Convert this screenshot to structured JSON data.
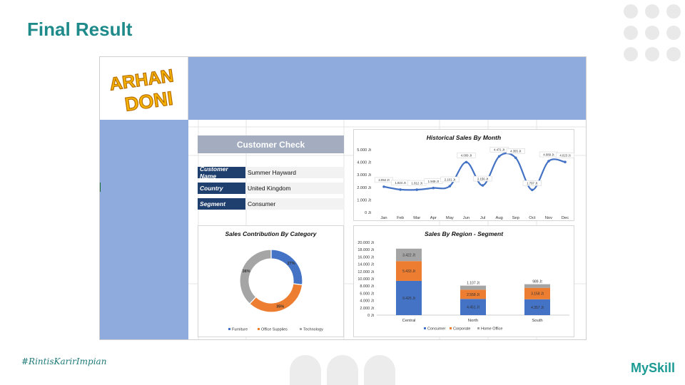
{
  "slide": {
    "title": "Final Result",
    "hashtag": "#RintisKarirImpian",
    "brand": "MySkill"
  },
  "logo": {
    "line1": "ARHAN",
    "line2": "DONI"
  },
  "colors": {
    "band": "#8faadc",
    "title_teal": "#1f8a8a",
    "label_navy": "#1f3f6e",
    "consumer": "#4472c4",
    "corporate": "#ed7d31",
    "home_office": "#a5a5a5",
    "line_series": "#4472c4"
  },
  "customer_check": {
    "title": "Customer Check",
    "fields": [
      {
        "label": "Customer Name",
        "value": "Summer Hayward"
      },
      {
        "label": "Country",
        "value": "United Kingdom"
      },
      {
        "label": "Segment",
        "value": "Consumer"
      }
    ]
  },
  "chart_data": [
    {
      "type": "line",
      "title": "Historical Sales By Month",
      "categories": [
        "Jan",
        "Feb",
        "Mar",
        "Apr",
        "May",
        "Jun",
        "Jul",
        "Aug",
        "Sep",
        "Oct",
        "Nov",
        "Dec"
      ],
      "values": [
        2052,
        1824,
        1812,
        1948,
        2101,
        4009,
        2156,
        4471,
        4355,
        1797,
        4089,
        4023
      ],
      "data_labels": [
        "2.052 Jt",
        "1.824 Jt",
        "1.812 Jt",
        "1.948 Jt",
        "2.101 Jt",
        "4.009 Jt",
        "2.156 Jt",
        "4.471 Jt",
        "4.355 Jt",
        "1.797 Jt",
        "4.089 Jt",
        "4.023 Jt"
      ],
      "ylim": [
        0,
        5000
      ],
      "yticks": [
        "0 Jt",
        "1.000 Jt",
        "2.000 Jt",
        "3.000 Jt",
        "4.000 Jt",
        "5.000 Jt"
      ],
      "smooth": true,
      "grid": false
    },
    {
      "type": "pie",
      "donut": true,
      "title": "Sales Contribution By Category",
      "categories": [
        "Furniture",
        "Office Supplies",
        "Technology"
      ],
      "values": [
        27,
        35,
        38
      ],
      "data_labels": [
        "27%",
        "35%",
        "38%"
      ],
      "legend": "bottom"
    },
    {
      "type": "bar",
      "stacked": true,
      "title": "Sales By Region - Segment",
      "categories": [
        "Central",
        "North",
        "South"
      ],
      "series": [
        {
          "name": "Consumer",
          "values": [
            9426,
            4451,
            4357
          ],
          "data_labels": [
            "9.426 Jt",
            "4.451 Jt",
            "4.357 Jt"
          ]
        },
        {
          "name": "Corporate",
          "values": [
            5433,
            2558,
            3158
          ],
          "data_labels": [
            "5.433 Jt",
            "2.558 Jt",
            "3.158 Jt"
          ]
        },
        {
          "name": "Home Office",
          "values": [
            3422,
            1107,
            989
          ],
          "data_labels": [
            "3.422 Jt",
            "1.107 Jt",
            "989 Jt"
          ]
        }
      ],
      "ylim": [
        0,
        20000
      ],
      "yticks": [
        "0 Jt",
        "2.000 Jt",
        "4.000 Jt",
        "6.000 Jt",
        "8.000 Jt",
        "10.000 Jt",
        "12.000 Jt",
        "14.000 Jt",
        "16.000 Jt",
        "18.000 Jt",
        "20.000 Jt"
      ],
      "legend": "bottom"
    }
  ]
}
